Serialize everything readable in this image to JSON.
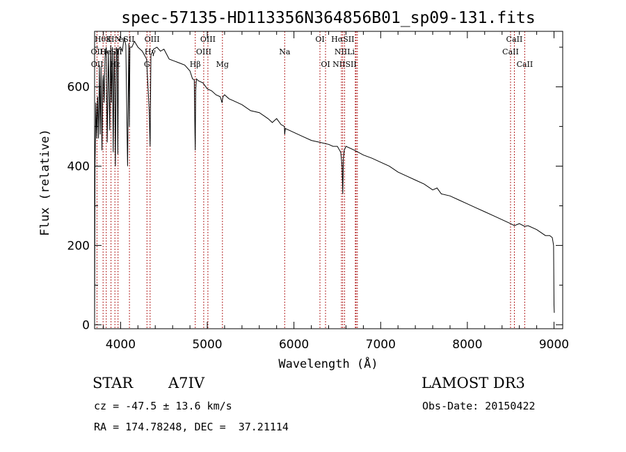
{
  "chart_data": {
    "type": "line",
    "title": "spec-57135-HD113356N364856B01_sp09-131.fits",
    "xlabel": "Wavelength (Å)",
    "ylabel": "Flux (relative)",
    "xlim": [
      3700,
      9100
    ],
    "ylim": [
      -10,
      740
    ],
    "xticks": [
      4000,
      5000,
      6000,
      7000,
      8000,
      9000
    ],
    "xtick_labels": [
      "4000",
      "5000",
      "6000",
      "7000",
      "8000",
      "9000"
    ],
    "yticks": [
      0,
      200,
      400,
      600
    ],
    "ytick_labels": [
      "0",
      "200",
      "400",
      "600"
    ],
    "grid": false,
    "series": [
      {
        "name": "spectrum",
        "x": [
          3700,
          3705,
          3715,
          3725,
          3735,
          3745,
          3755,
          3765,
          3775,
          3785,
          3795,
          3800,
          3810,
          3820,
          3835,
          3845,
          3860,
          3875,
          3885,
          3895,
          3905,
          3915,
          3925,
          3933,
          3940,
          3950,
          3960,
          3968,
          3975,
          3990,
          4000,
          4020,
          4040,
          4060,
          4080,
          4095,
          4101,
          4108,
          4130,
          4160,
          4200,
          4250,
          4300,
          4330,
          4340,
          4350,
          4380,
          4420,
          4460,
          4500,
          4560,
          4620,
          4680,
          4740,
          4800,
          4830,
          4850,
          4858,
          4861,
          4866,
          4875,
          4900,
          4950,
          5000,
          5050,
          5100,
          5150,
          5170,
          5180,
          5200,
          5250,
          5300,
          5400,
          5500,
          5600,
          5700,
          5750,
          5800,
          5850,
          5890,
          5893,
          5900,
          5950,
          6000,
          6100,
          6200,
          6300,
          6400,
          6450,
          6500,
          6540,
          6555,
          6563,
          6570,
          6580,
          6600,
          6700,
          6800,
          6900,
          7000,
          7100,
          7200,
          7300,
          7400,
          7500,
          7600,
          7650,
          7700,
          7800,
          7900,
          8000,
          8100,
          8200,
          8300,
          8400,
          8498,
          8542,
          8600,
          8662,
          8700,
          8800,
          8900,
          8950,
          8980,
          8995,
          9000,
          9003
        ],
        "values": [
          0,
          400,
          560,
          470,
          575,
          470,
          655,
          480,
          650,
          440,
          615,
          630,
          560,
          675,
          700,
          460,
          690,
          490,
          705,
          560,
          700,
          435,
          690,
          600,
          400,
          700,
          690,
          430,
          690,
          700,
          700,
          690,
          725,
          705,
          400,
          710,
          500,
          700,
          700,
          715,
          700,
          690,
          670,
          540,
          450,
          680,
          695,
          700,
          690,
          695,
          670,
          665,
          660,
          655,
          640,
          620,
          618,
          480,
          440,
          590,
          620,
          615,
          610,
          595,
          590,
          580,
          575,
          560,
          575,
          580,
          570,
          565,
          555,
          540,
          535,
          520,
          510,
          520,
          505,
          500,
          480,
          495,
          490,
          485,
          475,
          465,
          460,
          455,
          450,
          450,
          435,
          400,
          330,
          420,
          440,
          450,
          440,
          428,
          420,
          410,
          400,
          385,
          375,
          365,
          355,
          340,
          345,
          330,
          325,
          315,
          305,
          295,
          285,
          275,
          265,
          255,
          250,
          255,
          248,
          250,
          240,
          225,
          225,
          220,
          200,
          50,
          30
        ]
      }
    ],
    "line_markers": [
      {
        "label": "HθK",
        "wavelength": 3798,
        "row": 0
      },
      {
        "label": "H",
        "wavelength": 3890,
        "row": 0
      },
      {
        "label": "N",
        "wavelength": 3970,
        "row": 0
      },
      {
        "label": "eSII",
        "wavelength": 4070,
        "row": 0
      },
      {
        "label": "OIII",
        "wavelength": 4363,
        "row": 0
      },
      {
        "label": "OIII",
        "wavelength": 5007,
        "row": 0
      },
      {
        "label": "OI",
        "wavelength": 6300,
        "row": 0
      },
      {
        "label": "HαSII",
        "wavelength": 6563,
        "row": 0
      },
      {
        "label": "CaII",
        "wavelength": 8542,
        "row": 0
      },
      {
        "label": "OII",
        "wavelength": 3727,
        "row": 1
      },
      {
        "label": "HeSII",
        "wavelength": 3889,
        "row": 1
      },
      {
        "label": "Hγ",
        "wavelength": 4340,
        "row": 1
      },
      {
        "label": "OIII",
        "wavelength": 4959,
        "row": 1
      },
      {
        "label": "Na",
        "wavelength": 5893,
        "row": 1
      },
      {
        "label": "NIILi",
        "wavelength": 6584,
        "row": 1
      },
      {
        "label": "CaII",
        "wavelength": 8498,
        "row": 1
      },
      {
        "label": "OII",
        "wavelength": 3729,
        "row": 2
      },
      {
        "label": "Hε",
        "wavelength": 3935,
        "row": 2
      },
      {
        "label": "G",
        "wavelength": 4304,
        "row": 2
      },
      {
        "label": "Hβ",
        "wavelength": 4861,
        "row": 2
      },
      {
        "label": "Mg",
        "wavelength": 5175,
        "row": 2
      },
      {
        "label": "OI",
        "wavelength": 6364,
        "row": 2
      },
      {
        "label": "NIISII",
        "wavelength": 6584,
        "row": 2
      },
      {
        "label": "CaII",
        "wavelength": 8662,
        "row": 2
      }
    ],
    "marker_line_wavelengths": [
      3727,
      3798,
      3835,
      3889,
      3934,
      3970,
      4102,
      4304,
      4340,
      4861,
      4959,
      5007,
      5175,
      5893,
      6300,
      6364,
      6548,
      6563,
      6584,
      6708,
      6716,
      6731,
      8498,
      8542,
      8662
    ]
  },
  "info": {
    "object_type": "STAR",
    "spectral_class": "A7IV",
    "survey": "LAMOST DR3",
    "redshift_text": "cz = -47.5 ± 13.6 km/s",
    "obs_date": "Obs-Date: 20150422",
    "coords": "RA = 174.78248, DEC =  37.21114"
  },
  "colors": {
    "spectrum": "#000000",
    "marker_line": "#b22222",
    "axis": "#000000",
    "background": "#ffffff"
  }
}
